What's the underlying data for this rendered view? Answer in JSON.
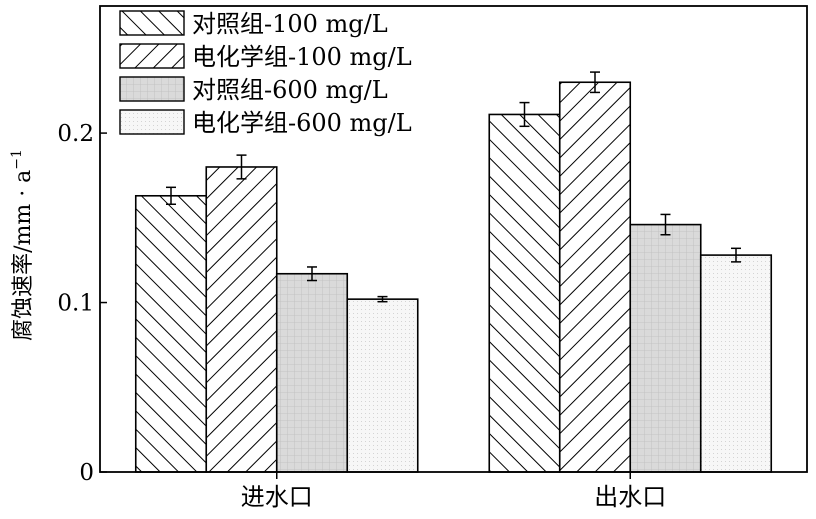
{
  "chart_data": {
    "type": "bar",
    "categories": [
      "进水口",
      "出水口"
    ],
    "ylabel": "腐蚀速率/mm · a",
    "ylabel_superscript": "−1",
    "ylim": [
      0,
      0.275
    ],
    "yticks": [
      0,
      0.1,
      0.2
    ],
    "ytick_labels": [
      "0",
      "0.1",
      "0.2"
    ],
    "grid": false,
    "legend_position": "top-left",
    "series": [
      {
        "name": "对照组-100 mg/L",
        "pattern": "hatch-forward",
        "values": [
          0.163,
          0.211
        ],
        "errors": [
          0.005,
          0.007
        ]
      },
      {
        "name": "电化学组-100 mg/L",
        "pattern": "hatch-backward",
        "values": [
          0.18,
          0.23
        ],
        "errors": [
          0.007,
          0.006
        ]
      },
      {
        "name": "对照组-600 mg/L",
        "pattern": "grid-gray",
        "values": [
          0.117,
          0.146
        ],
        "errors": [
          0.004,
          0.006
        ]
      },
      {
        "name": "电化学组-600 mg/L",
        "pattern": "dots-light",
        "values": [
          0.102,
          0.128
        ],
        "errors": [
          0.0015,
          0.004
        ]
      }
    ]
  }
}
